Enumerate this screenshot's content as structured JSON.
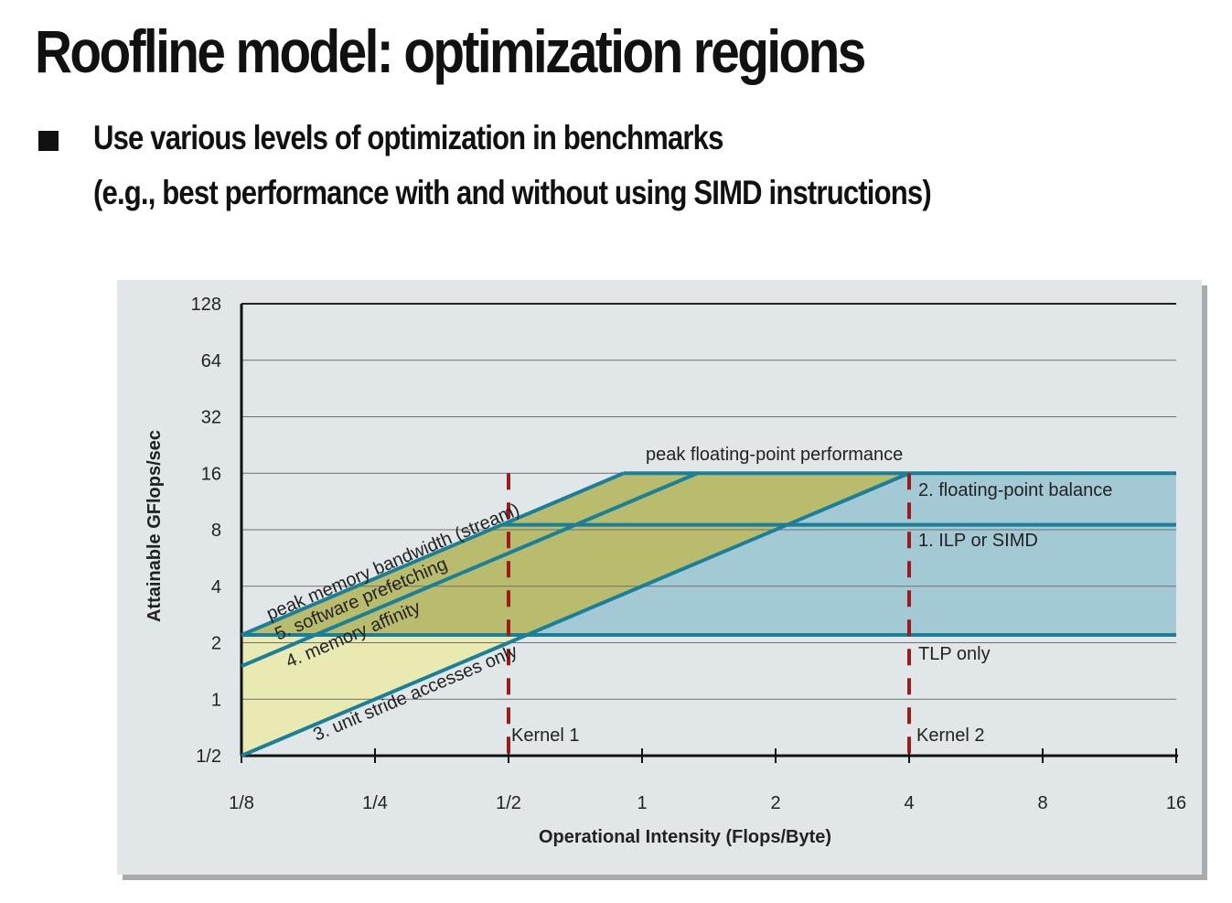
{
  "slide": {
    "title": "Roofline model: optimization regions",
    "bullet_line1": "Use various levels of optimization in benchmarks",
    "bullet_line2": "(e.g., best performance with and without using SIMD instructions)"
  },
  "colors": {
    "panel_bg": "#e1e7e8",
    "roof_line": "#1a7f98",
    "compute_region": "#a3c9d4",
    "memory_region": "#b8bc6c",
    "low_region": "#e9eab2",
    "kernel_marker": "#9b1b1b"
  },
  "chart_data": {
    "type": "line",
    "xlabel": "Operational Intensity (Flops/Byte)",
    "ylabel": "Attainable GFlops/sec",
    "x_scale": "log2",
    "y_scale": "log2",
    "xlim": [
      0.125,
      16
    ],
    "ylim": [
      0.5,
      128
    ],
    "x_ticks": [
      0.125,
      0.25,
      0.5,
      1,
      2,
      4,
      8,
      16
    ],
    "x_tick_labels": [
      "1/8",
      "1/4",
      "1/2",
      "1",
      "2",
      "4",
      "8",
      "16"
    ],
    "y_ticks": [
      0.5,
      1,
      2,
      4,
      8,
      16,
      32,
      64,
      128
    ],
    "y_tick_labels": [
      "1/2",
      "1",
      "2",
      "4",
      "8",
      "16",
      "32",
      "64",
      "128"
    ],
    "grid": "horizontal",
    "ceilings": [
      {
        "label": "peak floating-point performance",
        "kind": "compute",
        "value": 16
      },
      {
        "label": "2. floating-point balance",
        "kind": "compute",
        "value": 16
      },
      {
        "label": "1. ILP or SIMD",
        "kind": "compute",
        "value": 8.5
      },
      {
        "label": "TLP only",
        "kind": "compute",
        "value": 2.2
      }
    ],
    "bandwidth_lines": [
      {
        "label": "peak memory bandwidth (stream)",
        "bandwidth": 17.6,
        "x_start": 0.125
      },
      {
        "label": "5. software prefetching",
        "bandwidth": 12,
        "x_start": 0.125
      },
      {
        "label": "4. memory affinity",
        "bandwidth": 12,
        "x_start": 0.125
      },
      {
        "label": "3. unit stride accesses only",
        "bandwidth": 4,
        "x_start": 0.125
      }
    ],
    "kernels": [
      {
        "label": "Kernel 1",
        "x": 0.5
      },
      {
        "label": "Kernel 2",
        "x": 4
      }
    ]
  }
}
